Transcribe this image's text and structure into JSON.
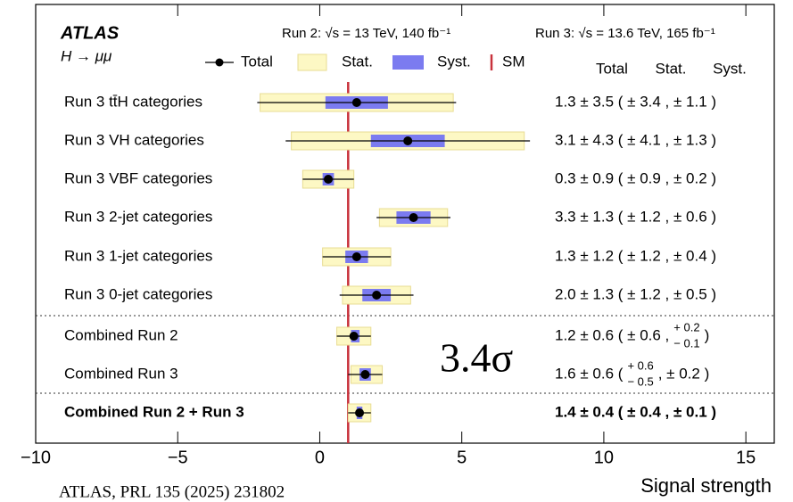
{
  "chart_data": {
    "type": "forest",
    "title": "ATLAS",
    "subtitle": "H → μμ",
    "run2_label": "Run 2: √s = 13 TeV, 140 fb⁻¹",
    "run3_label": "Run 3: √s = 13.6 TeV, 165 fb⁻¹",
    "significance": "3.4σ",
    "source": "ATLAS, PRL 135 (2025) 231802",
    "xlabel": "Signal strength",
    "legend": {
      "total": "Total",
      "stat": "Stat.",
      "syst": "Syst.",
      "sm": "SM"
    },
    "columns": [
      "Total",
      "Stat.",
      "Syst."
    ],
    "colors": {
      "total": "#000000",
      "stat": "#fdf8c4",
      "syst": "#7b7bf0",
      "sm": "#c8323c"
    },
    "sm_value": 1,
    "xlim": [
      -10,
      16
    ],
    "xticks": [
      {
        "value": -10,
        "label": "−10"
      },
      {
        "value": -5,
        "label": "−5"
      },
      0,
      5,
      10,
      15
    ],
    "rows": [
      {
        "label": "Run 3 tt̄H categories",
        "value": 1.3,
        "total": 3.5,
        "stat": 3.4,
        "syst": 1.1,
        "value_label": [
          "1.3 ± 3.5 ( ± 3.4 , ± 1.1 )"
        ]
      },
      {
        "label": "Run 3 VH categories",
        "value": 3.1,
        "total": 4.3,
        "stat": 4.1,
        "syst": 1.3,
        "value_label": [
          "3.1 ± 4.3 ( ± 4.1 , ± 1.3 )"
        ]
      },
      {
        "label": "Run 3 VBF categories",
        "value": 0.3,
        "total": 0.9,
        "stat": 0.9,
        "syst": 0.2,
        "value_label": [
          "0.3 ± 0.9 ( ± 0.9 , ± 0.2 )"
        ]
      },
      {
        "label": "Run 3 2-jet categories",
        "value": 3.3,
        "total": 1.3,
        "stat": 1.2,
        "syst": 0.6,
        "value_label": [
          "3.3 ± 1.3 ( ± 1.2 , ± 0.6 )"
        ]
      },
      {
        "label": "Run 3 1-jet categories",
        "value": 1.3,
        "total": 1.2,
        "stat": 1.2,
        "syst": 0.4,
        "value_label": [
          "1.3 ± 1.2 ( ± 1.2 , ± 0.4 )"
        ]
      },
      {
        "label": "Run 3 0-jet categories",
        "value": 2.0,
        "total": 1.3,
        "stat": 1.2,
        "syst": 0.5,
        "value_label": [
          "2.0 ± 1.3 ( ± 1.2 , ± 0.5 )"
        ]
      },
      {
        "label": "Combined Run 2",
        "value": 1.2,
        "total": 0.6,
        "stat": 0.6,
        "syst": {
          "up": 0.2,
          "down": 0.1
        },
        "value_label": [
          "1.2 ± 0.6 ( ± 0.6 ,",
          {
            "up": "+ 0.2",
            "down": "− 0.1"
          },
          ")"
        ]
      },
      {
        "label": "Combined Run 3",
        "value": 1.6,
        "total": 0.6,
        "stat": {
          "up": 0.6,
          "down": 0.5
        },
        "syst": 0.2,
        "value_label": [
          "1.6 ± 0.6 (",
          {
            "up": "+ 0.6",
            "down": "− 0.5"
          },
          ", ± 0.2 )"
        ]
      },
      {
        "label": "Combined Run 2 + Run 3",
        "value": 1.4,
        "total": 0.4,
        "stat": 0.4,
        "syst": 0.1,
        "value_label": [
          "1.4 ± 0.4 ( ± 0.4 , ± 0.1 )"
        ]
      }
    ]
  }
}
